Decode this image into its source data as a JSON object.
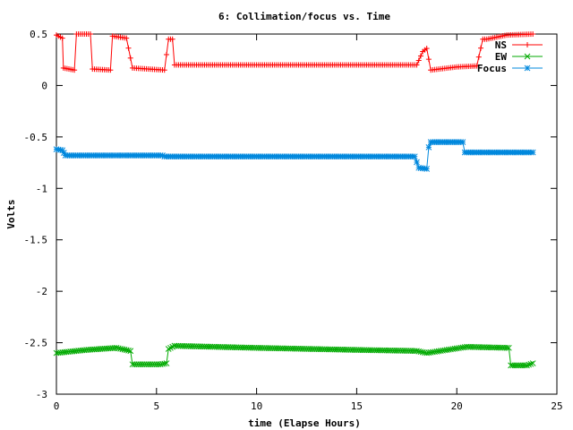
{
  "chart_data": {
    "type": "line",
    "title": "6: Collimation/focus vs. Time",
    "xlabel": "time (Elapse Hours)",
    "ylabel": "Volts",
    "xlim": [
      0,
      25
    ],
    "ylim": [
      -3,
      0.5
    ],
    "x_ticks": [
      0,
      5,
      10,
      15,
      20,
      25
    ],
    "y_ticks": [
      0.5,
      0,
      -0.5,
      -1,
      -1.5,
      -2,
      -2.5,
      -3
    ],
    "x_tick_labels": [
      "0",
      "5",
      "10",
      "15",
      "20",
      "25"
    ],
    "y_tick_labels": [
      "0.5",
      "0",
      "-0.5",
      "-1",
      "-1.5",
      "-2",
      "-2.5",
      "-3"
    ],
    "grid": false,
    "legend_position": "top-right",
    "series": [
      {
        "name": "NS",
        "color": "#ff0000",
        "marker": "plus",
        "x": [
          0,
          0.3,
          0.35,
          0.9,
          1.0,
          1.7,
          1.8,
          2.7,
          2.8,
          3.5,
          3.8,
          5.4,
          5.6,
          5.8,
          5.9,
          10,
          15,
          18.0,
          18.3,
          18.5,
          18.7,
          20,
          21.0,
          21.3,
          21.5,
          22.5,
          23.8
        ],
        "y": [
          0.49,
          0.46,
          0.17,
          0.15,
          0.5,
          0.5,
          0.16,
          0.15,
          0.48,
          0.46,
          0.17,
          0.15,
          0.45,
          0.45,
          0.2,
          0.2,
          0.2,
          0.2,
          0.33,
          0.36,
          0.15,
          0.18,
          0.19,
          0.45,
          0.45,
          0.49,
          0.5
        ]
      },
      {
        "name": "EW",
        "color": "#00aa00",
        "marker": "cross",
        "x": [
          0,
          1.5,
          3.0,
          3.7,
          3.8,
          5.2,
          5.5,
          5.6,
          5.9,
          10,
          15,
          18.0,
          18.5,
          19.5,
          20.5,
          22.6,
          22.7,
          23.5,
          23.8
        ],
        "y": [
          -2.6,
          -2.57,
          -2.55,
          -2.58,
          -2.71,
          -2.71,
          -2.7,
          -2.56,
          -2.53,
          -2.55,
          -2.57,
          -2.58,
          -2.6,
          -2.57,
          -2.54,
          -2.55,
          -2.72,
          -2.72,
          -2.7
        ]
      },
      {
        "name": "Focus",
        "color": "#0088dd",
        "marker": "star",
        "x": [
          0,
          0.3,
          0.45,
          5.3,
          5.4,
          10,
          15,
          17.9,
          18.1,
          18.5,
          18.6,
          18.7,
          20.3,
          20.4,
          23.8
        ],
        "y": [
          -0.62,
          -0.63,
          -0.68,
          -0.68,
          -0.69,
          -0.69,
          -0.69,
          -0.69,
          -0.8,
          -0.81,
          -0.6,
          -0.55,
          -0.55,
          -0.65,
          -0.65
        ]
      }
    ]
  }
}
